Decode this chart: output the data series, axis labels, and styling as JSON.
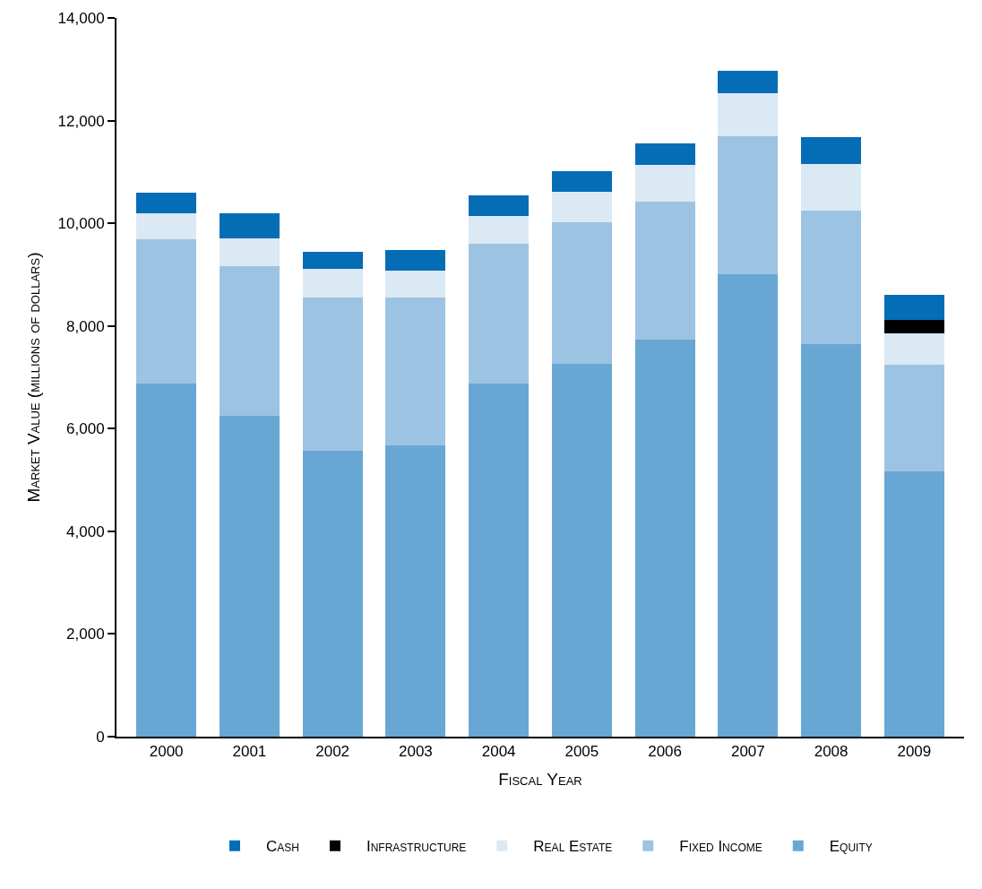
{
  "chart_data": {
    "type": "bar",
    "stacked": true,
    "xlabel": "Fiscal Year",
    "ylabel": "Market Value (millions of dollars)",
    "categories": [
      "2000",
      "2001",
      "2002",
      "2003",
      "2004",
      "2005",
      "2006",
      "2007",
      "2008",
      "2009"
    ],
    "series": [
      {
        "name": "Equity",
        "color": "#68a7d3",
        "values": [
          6870,
          6250,
          5570,
          5670,
          6870,
          7270,
          7730,
          9000,
          7650,
          5160
        ]
      },
      {
        "name": "Fixed Income",
        "color": "#9dc3e2",
        "values": [
          2820,
          2910,
          2990,
          2890,
          2730,
          2750,
          2700,
          2700,
          2590,
          2090
        ]
      },
      {
        "name": "Real Estate",
        "color": "#dae9f4",
        "values": [
          510,
          550,
          560,
          510,
          550,
          600,
          700,
          840,
          910,
          600
        ]
      },
      {
        "name": "Infrastructure",
        "color": "#000000",
        "values": [
          null,
          null,
          null,
          null,
          null,
          null,
          null,
          null,
          null,
          260
        ]
      },
      {
        "name": "Cash",
        "color": "#056cb6",
        "values": [
          400,
          480,
          330,
          410,
          400,
          390,
          430,
          430,
          520,
          490
        ]
      }
    ],
    "ylim": [
      0,
      14000
    ],
    "yticks": [
      0,
      {
        "value": 2000,
        "label": "2,000"
      },
      {
        "value": 4000,
        "label": "4,000"
      },
      {
        "value": 6000,
        "label": "6,000"
      },
      {
        "value": 8000,
        "label": "8,000"
      },
      {
        "value": 10000,
        "label": "10,000"
      },
      {
        "value": 12000,
        "label": "12,000"
      },
      {
        "value": 14000,
        "label": "14,000"
      }
    ],
    "legend": "bottom"
  }
}
